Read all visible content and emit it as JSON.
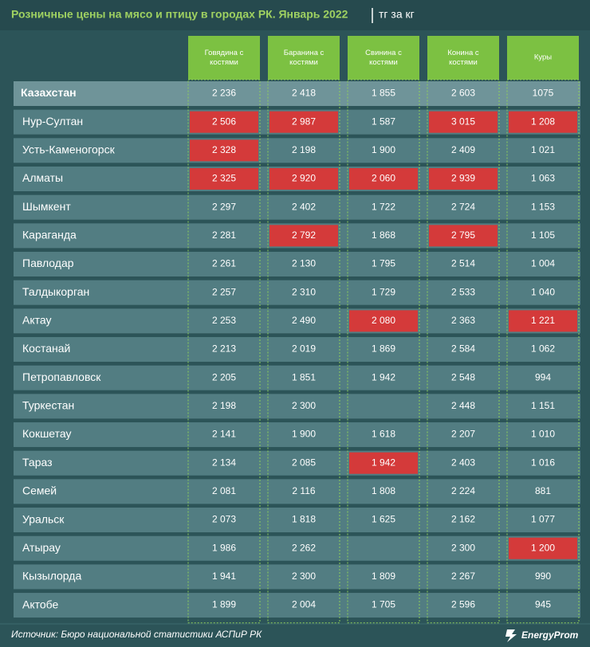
{
  "header": {
    "title": "Розничные цены на мясо и птицу в городах РК. Январь 2022",
    "unit": "тг за кг"
  },
  "table": {
    "columns": [
      "Говядина с костями",
      "Баранина с костями",
      "Свинина с костями",
      "Конина с костями",
      "Куры"
    ],
    "highlight_color": "#d43a3a",
    "rows": [
      {
        "name": "Казахстан",
        "values": [
          "2 236",
          "2 418",
          "1 855",
          "2 603",
          "1075"
        ],
        "highlight": [
          false,
          false,
          false,
          false,
          false
        ]
      },
      {
        "name": "Нур-Султан",
        "values": [
          "2 506",
          "2 987",
          "1 587",
          "3 015",
          "1 208"
        ],
        "highlight": [
          true,
          true,
          false,
          true,
          true
        ]
      },
      {
        "name": "Усть-Каменогорск",
        "values": [
          "2 328",
          "2 198",
          "1 900",
          "2 409",
          "1 021"
        ],
        "highlight": [
          true,
          false,
          false,
          false,
          false
        ]
      },
      {
        "name": "Алматы",
        "values": [
          "2 325",
          "2 920",
          "2 060",
          "2 939",
          "1 063"
        ],
        "highlight": [
          true,
          true,
          true,
          true,
          false
        ]
      },
      {
        "name": "Шымкент",
        "values": [
          "2 297",
          "2 402",
          "1 722",
          "2 724",
          "1 153"
        ],
        "highlight": [
          false,
          false,
          false,
          false,
          false
        ]
      },
      {
        "name": "Караганда",
        "values": [
          "2 281",
          "2 792",
          "1 868",
          "2 795",
          "1 105"
        ],
        "highlight": [
          false,
          true,
          false,
          true,
          false
        ]
      },
      {
        "name": "Павлодар",
        "values": [
          "2 261",
          "2 130",
          "1 795",
          "2 514",
          "1 004"
        ],
        "highlight": [
          false,
          false,
          false,
          false,
          false
        ]
      },
      {
        "name": "Талдыкорган",
        "values": [
          "2 257",
          "2 310",
          "1 729",
          "2 533",
          "1 040"
        ],
        "highlight": [
          false,
          false,
          false,
          false,
          false
        ]
      },
      {
        "name": "Актау",
        "values": [
          "2 253",
          "2 490",
          "2 080",
          "2 363",
          "1 221"
        ],
        "highlight": [
          false,
          false,
          true,
          false,
          true
        ]
      },
      {
        "name": "Костанай",
        "values": [
          "2 213",
          "2 019",
          "1 869",
          "2 584",
          "1 062"
        ],
        "highlight": [
          false,
          false,
          false,
          false,
          false
        ]
      },
      {
        "name": "Петропавловск",
        "values": [
          "2 205",
          "1 851",
          "1 942",
          "2 548",
          "994"
        ],
        "highlight": [
          false,
          false,
          false,
          false,
          false
        ]
      },
      {
        "name": "Туркестан",
        "values": [
          "2 198",
          "2 300",
          null,
          "2 448",
          "1 151"
        ],
        "highlight": [
          false,
          false,
          false,
          false,
          false
        ]
      },
      {
        "name": "Кокшетау",
        "values": [
          "2 141",
          "1 900",
          "1 618",
          "2 207",
          "1 010"
        ],
        "highlight": [
          false,
          false,
          false,
          false,
          false
        ]
      },
      {
        "name": "Тараз",
        "values": [
          "2 134",
          "2 085",
          "1 942",
          "2 403",
          "1 016"
        ],
        "highlight": [
          false,
          false,
          true,
          false,
          false
        ]
      },
      {
        "name": "Семей",
        "values": [
          "2 081",
          "2 116",
          "1 808",
          "2 224",
          "881"
        ],
        "highlight": [
          false,
          false,
          false,
          false,
          false
        ]
      },
      {
        "name": "Уральск",
        "values": [
          "2 073",
          "1 818",
          "1 625",
          "2 162",
          "1 077"
        ],
        "highlight": [
          false,
          false,
          false,
          false,
          false
        ]
      },
      {
        "name": "Атырау",
        "values": [
          "1 986",
          "2 262",
          null,
          "2 300",
          "1 200"
        ],
        "highlight": [
          false,
          false,
          false,
          false,
          true
        ]
      },
      {
        "name": "Кызылорда",
        "values": [
          "1 941",
          "2 300",
          "1 809",
          "2 267",
          "990"
        ],
        "highlight": [
          false,
          false,
          false,
          false,
          false
        ]
      },
      {
        "name": "Актобе",
        "values": [
          "1 899",
          "2 004",
          "1 705",
          "2 596",
          "945"
        ],
        "highlight": [
          false,
          false,
          false,
          false,
          false
        ]
      }
    ]
  },
  "footer": {
    "source": "Источник: Бюро национальной статистики АСПиР РК",
    "logo": "EnergyProm"
  }
}
